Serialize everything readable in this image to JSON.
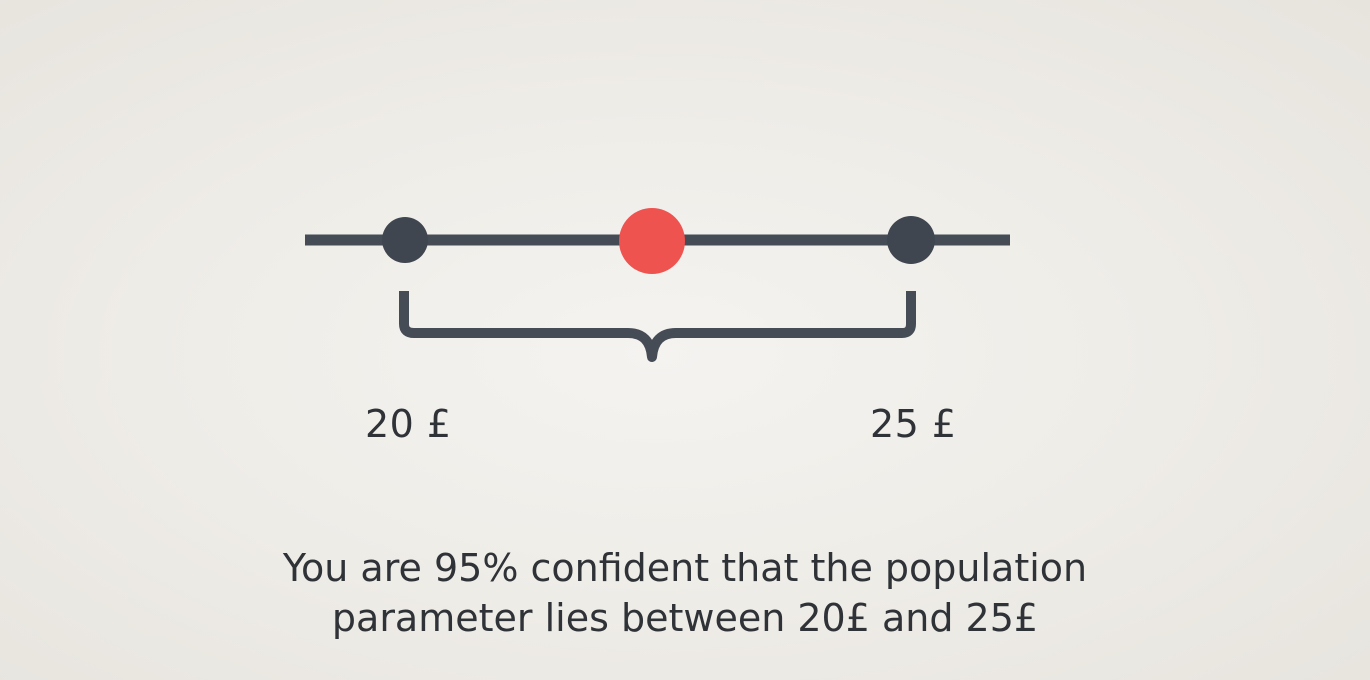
{
  "diagram": {
    "lower_bound_label": "20 £",
    "upper_bound_label": "25 £",
    "caption": {
      "line1": "You are 95% confident that the population",
      "line2": "parameter lies between 20£ and 25£"
    }
  },
  "colors": {
    "line": "#454c55",
    "bound_points": "#3f4650",
    "estimate_point": "#ef5350",
    "text": "#2f3338",
    "background": "#efede8"
  }
}
